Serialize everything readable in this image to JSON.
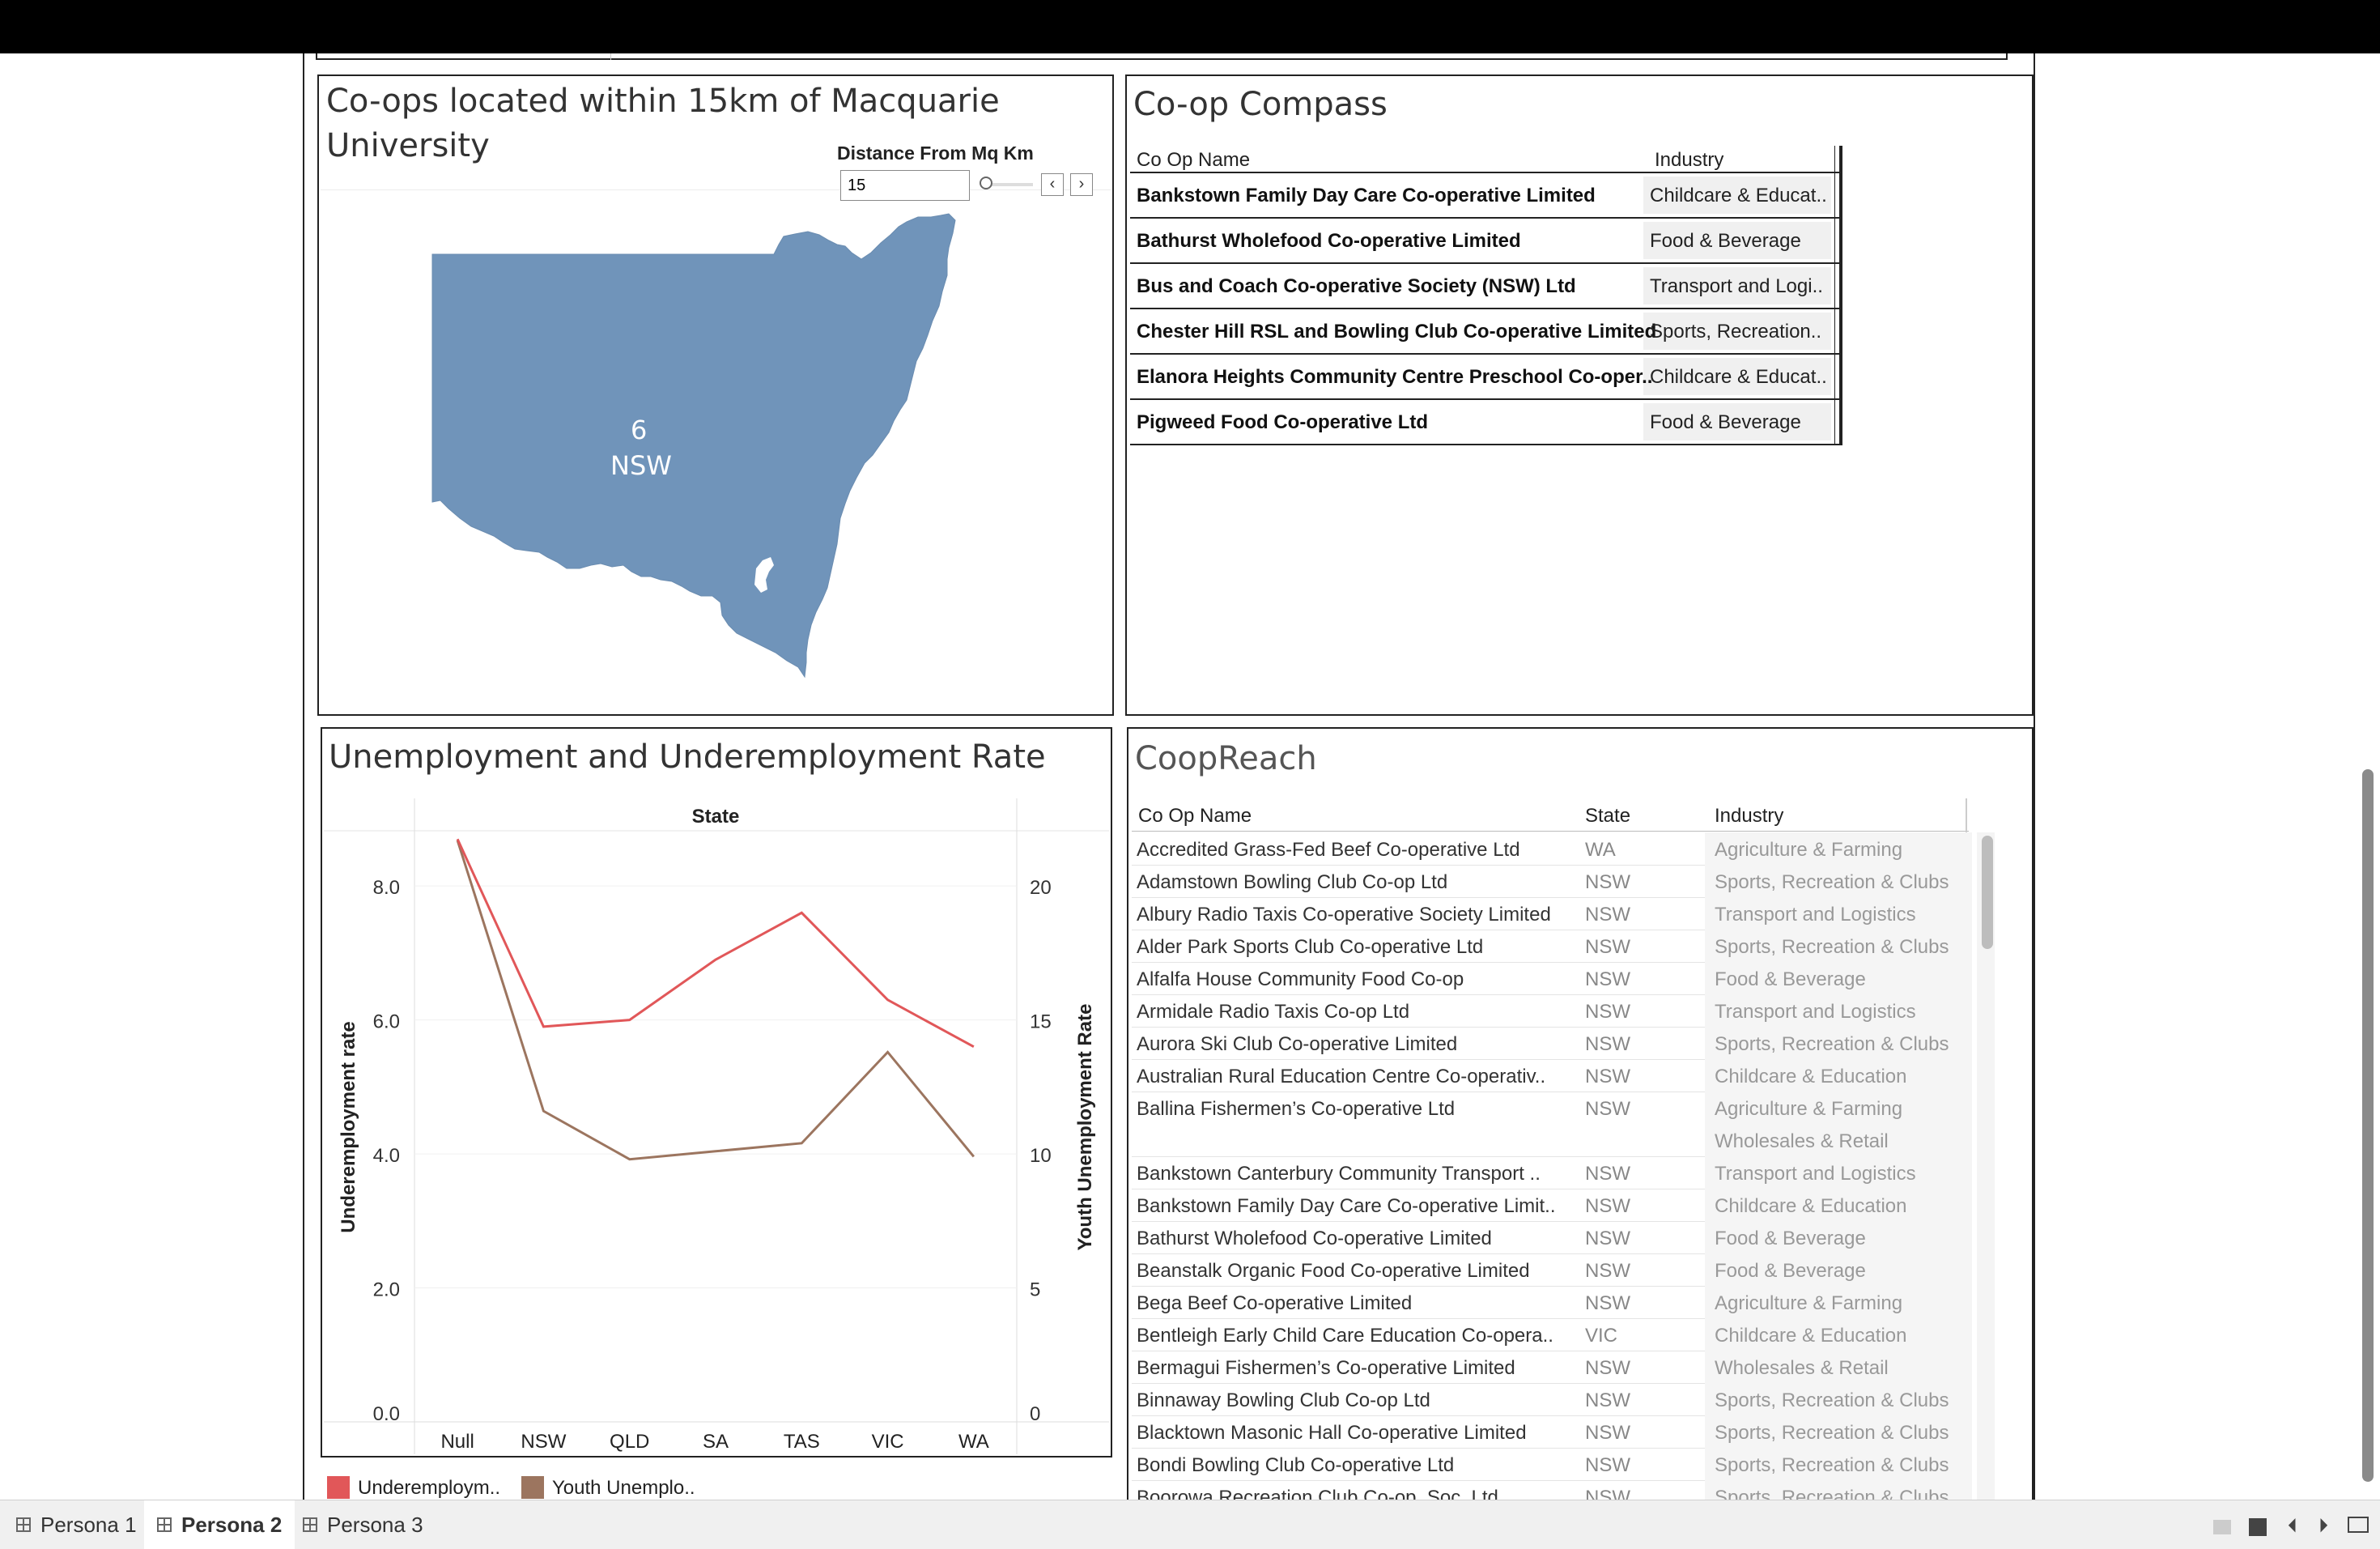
{
  "map_panel": {
    "title_line1": "Co-ops located within 15km of Macquarie",
    "title_line2": "University",
    "filter_label": "Distance From Mq Km",
    "filter_value": "15",
    "map_count": "6",
    "map_state": "NSW"
  },
  "compass": {
    "title": "Co-op Compass",
    "col_name": "Co Op Name",
    "col_industry": "Industry",
    "rows": [
      {
        "name": "Bankstown Family Day Care Co-operative Limited",
        "industry": "Childcare & Educat.."
      },
      {
        "name": "Bathurst Wholefood Co-operative Limited",
        "industry": "Food & Beverage"
      },
      {
        "name": "Bus and Coach Co-operative Society (NSW) Ltd",
        "industry": "Transport and Logi.."
      },
      {
        "name": "Chester Hill RSL and Bowling Club Co-operative Limited",
        "industry": "Sports, Recreation.."
      },
      {
        "name": "Elanora Heights Community Centre Preschool Co-oper..",
        "industry": "Childcare & Educat.."
      },
      {
        "name": "Pigweed Food Co-operative Ltd",
        "industry": "Food & Beverage"
      }
    ]
  },
  "unemp": {
    "title": "Unemployment and Underemployment Rate",
    "header": "State",
    "legend1": "Underemploym..",
    "legend2": "Youth Unemplo..",
    "color1": "#e15759",
    "color2": "#9c755f"
  },
  "chart_data": {
    "type": "line",
    "categories": [
      "Null",
      "NSW",
      "QLD",
      "SA",
      "TAS",
      "VIC",
      "WA"
    ],
    "xlabel": "State",
    "series": [
      {
        "name": "Underemploym..",
        "axis": "left",
        "ylabel": "Underemployment rate",
        "ylim": [
          0,
          8.8
        ],
        "ticks": [
          "0.0",
          "2.0",
          "4.0",
          "6.0",
          "8.0"
        ],
        "values": [
          8.7,
          5.9,
          6.0,
          6.9,
          7.6,
          6.3,
          5.6
        ]
      },
      {
        "name": "Youth Unemplo..",
        "axis": "right",
        "ylabel": "Youth Unemployment Rate",
        "ylim": [
          0,
          22
        ],
        "ticks": [
          "0",
          "5",
          "10",
          "15",
          "20"
        ],
        "values": [
          21.7,
          11.6,
          9.8,
          10.1,
          10.4,
          13.8,
          9.9
        ]
      }
    ]
  },
  "reach": {
    "title": "CoopReach",
    "col_name": "Co Op Name",
    "col_state": "State",
    "col_industry": "Industry",
    "rows": [
      {
        "name": "Accredited Grass-Fed Beef Co-operative Ltd",
        "state": "WA",
        "industry": "Agriculture & Farming"
      },
      {
        "name": "Adamstown Bowling Club Co-op Ltd",
        "state": "NSW",
        "industry": "Sports, Recreation & Clubs"
      },
      {
        "name": "Albury Radio Taxis Co-operative Society Limited",
        "state": "NSW",
        "industry": "Transport and Logistics"
      },
      {
        "name": "Alder Park Sports Club Co-operative Ltd",
        "state": "NSW",
        "industry": "Sports, Recreation & Clubs"
      },
      {
        "name": "Alfalfa House Community Food Co-op",
        "state": "NSW",
        "industry": "Food & Beverage"
      },
      {
        "name": "Armidale Radio Taxis Co-op Ltd",
        "state": "NSW",
        "industry": "Transport and Logistics"
      },
      {
        "name": "Aurora Ski Club Co-operative Limited",
        "state": "NSW",
        "industry": "Sports, Recreation & Clubs"
      },
      {
        "name": "Australian Rural Education Centre Co-operativ..",
        "state": "NSW",
        "industry": "Childcare & Education"
      },
      {
        "name": "Ballina Fishermen’s Co-operative Ltd",
        "state": "NSW",
        "industry": "Agriculture & Farming",
        "industry2": "Wholesales & Retail"
      },
      {
        "name": "Bankstown Canterbury Community Transport ..",
        "state": "NSW",
        "industry": "Transport and Logistics"
      },
      {
        "name": "Bankstown Family Day Care Co-operative Limit..",
        "state": "NSW",
        "industry": "Childcare & Education"
      },
      {
        "name": "Bathurst Wholefood Co-operative Limited",
        "state": "NSW",
        "industry": "Food & Beverage"
      },
      {
        "name": "Beanstalk Organic Food Co-operative Limited",
        "state": "NSW",
        "industry": "Food & Beverage"
      },
      {
        "name": "Bega Beef Co-operative Limited",
        "state": "NSW",
        "industry": "Agriculture & Farming"
      },
      {
        "name": "Bentleigh Early Child Care Education Co-opera..",
        "state": "VIC",
        "industry": "Childcare & Education"
      },
      {
        "name": "Bermagui Fishermen’s Co-operative Limited",
        "state": "NSW",
        "industry": "Wholesales & Retail"
      },
      {
        "name": "Binnaway Bowling Club Co-op Ltd",
        "state": "NSW",
        "industry": "Sports, Recreation & Clubs"
      },
      {
        "name": "Blacktown Masonic Hall Co-operative Limited",
        "state": "NSW",
        "industry": "Sports, Recreation & Clubs"
      },
      {
        "name": "Bondi Bowling Club Co-operative Ltd",
        "state": "NSW",
        "industry": "Sports, Recreation & Clubs"
      },
      {
        "name": "Boorowa Recreation Club Co-op. Soc. Ltd.",
        "state": "NSW",
        "industry": "Sports, Recreation & Clubs"
      }
    ]
  },
  "tabs": {
    "t1": "Persona 1",
    "t2": "Persona 2",
    "t3": "Persona 3"
  }
}
